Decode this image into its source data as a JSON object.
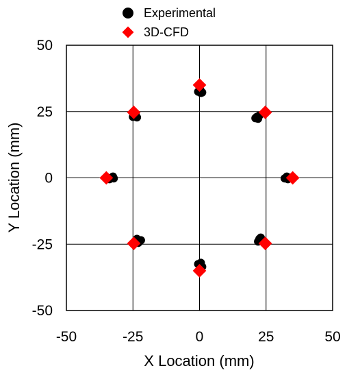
{
  "chart_data": {
    "type": "scatter",
    "title": "",
    "xlabel": "X Location (mm)",
    "ylabel": "Y Location (mm)",
    "xlim": [
      -50,
      50
    ],
    "ylim": [
      -50,
      50
    ],
    "x_ticks": [
      "-50",
      "-25",
      "0",
      "25",
      "50"
    ],
    "y_ticks": [
      "50",
      "25",
      "0",
      "-25",
      "-50"
    ],
    "x_tick_values": [
      -50,
      -25,
      0,
      25,
      50
    ],
    "y_tick_values": [
      50,
      25,
      0,
      -25,
      -50
    ],
    "grid": true,
    "legend_position": "top",
    "series": [
      {
        "name": "Experimental",
        "marker": "circle",
        "color": "#000000",
        "x": [
          0.0,
          0.5,
          -0.5,
          1.0,
          0.3,
          21.5,
          22.5,
          21.0,
          22.0,
          32.5,
          33.2,
          32.8,
          32.0,
          22.5,
          23.5,
          22.0,
          23.0,
          0.0,
          -0.5,
          0.5,
          1.0,
          -22.5,
          -23.5,
          -22.0,
          -23.0,
          -33.0,
          -32.5,
          -33.8,
          -32.2,
          -24.5,
          -23.5,
          -25.0,
          -24.0
        ],
        "y": [
          33.0,
          32.0,
          32.5,
          32.2,
          33.2,
          23.0,
          23.5,
          22.5,
          22.3,
          0.0,
          -0.5,
          0.5,
          -0.2,
          -23.0,
          -23.5,
          -24.0,
          -22.5,
          -33.0,
          -32.5,
          -32.0,
          -33.5,
          -24.0,
          -23.0,
          -23.5,
          -24.5,
          0.0,
          0.5,
          -0.5,
          -0.2,
          23.5,
          22.8,
          23.0,
          24.0
        ]
      },
      {
        "name": "3D-CFD",
        "marker": "diamond",
        "color": "#ff0000",
        "x": [
          0.0,
          24.7,
          35.0,
          24.7,
          0.0,
          -24.7,
          -35.0,
          -24.7
        ],
        "y": [
          35.0,
          24.7,
          0.0,
          -24.7,
          -35.0,
          -24.7,
          0.0,
          24.7
        ]
      }
    ]
  }
}
